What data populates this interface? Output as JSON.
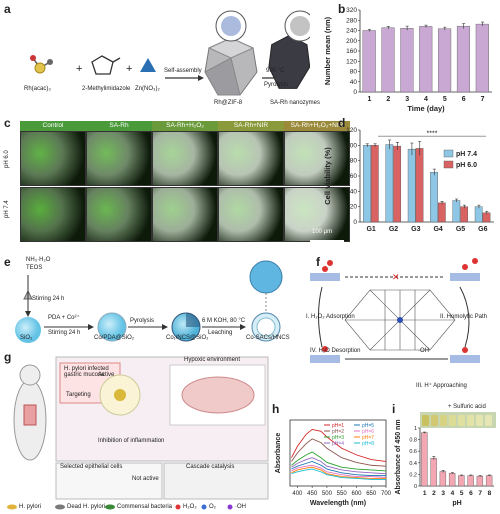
{
  "panels": {
    "a": {
      "label": "a",
      "reagents": [
        "Rh(acac)₃",
        "2-Methylimidazole",
        "Zn(NO₃)₂"
      ],
      "step1": "Self-assembly",
      "product1": "Rh@ZIF-8",
      "step2": "900 °C",
      "step2b": "Pyrolysis",
      "product2": "SA-Rh nanozymes"
    },
    "b": {
      "label": "b"
    },
    "c": {
      "label": "c",
      "headers": [
        "Control",
        "SA-Rh",
        "SA-Rh+H₂O₂",
        "SA-Rh+NIR",
        "SA-Rh+H₂O₂+NIR"
      ],
      "rows": [
        "pH 6.0",
        "pH 7.4"
      ],
      "scale": "100 μm"
    },
    "d": {
      "label": "d"
    },
    "e": {
      "label": "e",
      "nh3": "NH₃·H₂O",
      "teos": "TEOS",
      "stir1": "Stirring 24 h",
      "sio2": "SiO₂",
      "pda": "PDA + Co²⁺",
      "stir2": "Stirring 24 h",
      "copda": "Co/PDA@SiO₂",
      "pyro": "Pyrolysis",
      "conc": "Co₁/NCS@SiO₂",
      "koh": "6 M KOH, 80 °C",
      "leach": "Leaching",
      "final": "Co-SACs/HNCS"
    },
    "f": {
      "label": "f",
      "step1": "I. H₂O₂ Adsorption",
      "step2": "II. Homolytic Path",
      "step3": "III. H⁺ Approaching",
      "step4": "IV. H₂O Desorption",
      "oh": "·OH"
    },
    "g": {
      "label": "g",
      "h1": "H. pylori infected gastric mucosa",
      "h2": "Active",
      "h3": "Targeting",
      "h4": "Inhibition of inflammation",
      "h5": "Hypoxic environment",
      "h6": "Selected epithelial cells",
      "h7": "Not active",
      "h8": "Cascade catalysis",
      "legend": [
        "H. pylori",
        "Dead H. pylori",
        "Commensal bacteria",
        "H₂O₂",
        "O₂",
        "·OH"
      ]
    },
    "h": {
      "label": "h"
    },
    "i": {
      "label": "i",
      "note": "+ Sulfuric acid",
      "ph_label": "pH",
      "ph_values": [
        "1",
        "2",
        "3",
        "4",
        "5",
        "6",
        "7",
        "8"
      ]
    }
  },
  "chart_data": [
    {
      "panel": "b",
      "type": "bar",
      "categories": [
        "1",
        "2",
        "3",
        "4",
        "5",
        "6",
        "7"
      ],
      "values": [
        240,
        251,
        249,
        256,
        247,
        257,
        265
      ],
      "errors": [
        4,
        5,
        8,
        5,
        6,
        10,
        8
      ],
      "xlabel": "Time (day)",
      "ylabel": "Number mean (nm)",
      "ylim": [
        0,
        320
      ],
      "yticks": [
        0,
        40,
        80,
        120,
        160,
        200,
        240,
        280,
        320
      ],
      "color": "#c9a9d3"
    },
    {
      "panel": "d",
      "type": "bar",
      "categories": [
        "G1",
        "G2",
        "G3",
        "G4",
        "G5",
        "G6"
      ],
      "series": [
        {
          "name": "pH 7.4",
          "values": [
            100,
            101,
            95,
            65,
            28,
            20
          ],
          "errors": [
            2,
            6,
            8,
            4,
            2,
            2
          ],
          "color": "#8ec6e6"
        },
        {
          "name": "pH 6.0",
          "values": [
            100,
            99,
            96,
            25,
            20,
            12
          ],
          "errors": [
            2,
            5,
            9,
            2,
            2,
            2
          ],
          "color": "#d96262"
        }
      ],
      "ylabel": "Cell viability (%)",
      "ylim": [
        0,
        120
      ],
      "yticks": [
        0,
        20,
        40,
        60,
        80,
        100,
        120
      ],
      "significance": "****",
      "legend": "right"
    },
    {
      "panel": "h",
      "type": "line",
      "xlabel": "Wavelength (nm)",
      "ylabel": "Absorbance",
      "xlim": [
        375,
        700
      ],
      "xticks": [
        400,
        450,
        500,
        550,
        600,
        650,
        700
      ],
      "series": [
        {
          "name": "pH=1",
          "color": "#d62728",
          "x": [
            380,
            400,
            430,
            450,
            480,
            500,
            550,
            600,
            650,
            700
          ],
          "y": [
            0.3,
            0.42,
            0.55,
            0.6,
            0.58,
            0.52,
            0.4,
            0.33,
            0.28,
            0.26
          ]
        },
        {
          "name": "pH=2",
          "color": "#8c564b",
          "x": [
            380,
            400,
            430,
            450,
            480,
            500,
            550,
            600,
            650,
            700
          ],
          "y": [
            0.26,
            0.35,
            0.45,
            0.5,
            0.46,
            0.4,
            0.3,
            0.25,
            0.22,
            0.21
          ]
        },
        {
          "name": "pH=3",
          "color": "#2ca02c",
          "x": [
            380,
            400,
            430,
            450,
            480,
            500,
            550,
            600,
            650,
            700
          ],
          "y": [
            0.22,
            0.27,
            0.33,
            0.36,
            0.3,
            0.25,
            0.2,
            0.18,
            0.17,
            0.16
          ]
        },
        {
          "name": "pH=4",
          "color": "#9467bd",
          "x": [
            380,
            400,
            430,
            450,
            480,
            500,
            550,
            600,
            650,
            700
          ],
          "y": [
            0.2,
            0.24,
            0.28,
            0.3,
            0.26,
            0.21,
            0.17,
            0.15,
            0.14,
            0.13
          ]
        },
        {
          "name": "pH=5",
          "color": "#1f77b4",
          "x": [
            380,
            400,
            430,
            450,
            480,
            500,
            550,
            600,
            650,
            700
          ],
          "y": [
            0.18,
            0.21,
            0.24,
            0.26,
            0.22,
            0.18,
            0.14,
            0.12,
            0.11,
            0.11
          ]
        },
        {
          "name": "pH=6",
          "color": "#e377c2",
          "x": [
            380,
            400,
            430,
            450,
            480,
            500,
            550,
            600,
            650,
            700
          ],
          "y": [
            0.16,
            0.19,
            0.21,
            0.22,
            0.19,
            0.15,
            0.12,
            0.1,
            0.1,
            0.09
          ]
        },
        {
          "name": "pH=7",
          "color": "#ff7f0e",
          "x": [
            380,
            400,
            430,
            450,
            480,
            500,
            550,
            600,
            650,
            700
          ],
          "y": [
            0.14,
            0.17,
            0.19,
            0.2,
            0.17,
            0.13,
            0.1,
            0.09,
            0.08,
            0.08
          ]
        },
        {
          "name": "pH=8",
          "color": "#17becf",
          "x": [
            380,
            400,
            430,
            450,
            480,
            500,
            550,
            600,
            650,
            700
          ],
          "y": [
            0.13,
            0.15,
            0.17,
            0.18,
            0.15,
            0.12,
            0.09,
            0.08,
            0.07,
            0.07
          ]
        }
      ]
    },
    {
      "panel": "i",
      "type": "bar",
      "categories": [
        "1",
        "2",
        "3",
        "4",
        "5",
        "6",
        "7",
        "8"
      ],
      "values": [
        0.92,
        0.48,
        0.25,
        0.22,
        0.18,
        0.18,
        0.17,
        0.18
      ],
      "errors": [
        0.01,
        0.03,
        0.02,
        0.01,
        0.01,
        0.01,
        0.01,
        0.01
      ],
      "xlabel": "pH",
      "ylabel": "Absorbance of 450 nm",
      "ylim": [
        0,
        1.0
      ],
      "yticks": [
        0,
        0.2,
        0.4,
        0.6,
        0.8,
        1.0
      ],
      "color": "#f2a7b3"
    }
  ],
  "colors": {
    "purple": "#c9a9d3",
    "blue": "#8ec6e6",
    "red": "#d96262",
    "pink": "#f2a7b3",
    "micro_bg": "#0d1a0a",
    "micro_green": "#3f9a2c"
  }
}
